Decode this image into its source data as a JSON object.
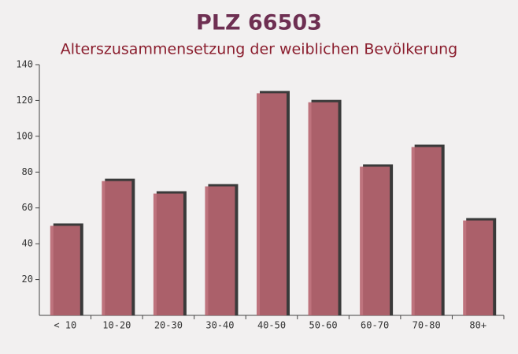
{
  "chart_data": {
    "type": "bar",
    "title": "PLZ 66503",
    "subtitle": "Alterszusammensetzung der weiblichen Bevölkerung",
    "categories": [
      "< 10",
      "10-20",
      "20-30",
      "30-40",
      "40-50",
      "50-60",
      "60-70",
      "70-80",
      "80+"
    ],
    "values": [
      50,
      75,
      68,
      72,
      124,
      119,
      83,
      94,
      53
    ],
    "color": "#b86570",
    "ylim": [
      0,
      140
    ],
    "yticks": [
      20,
      40,
      60,
      80,
      100,
      120,
      140
    ],
    "grid": false
  }
}
